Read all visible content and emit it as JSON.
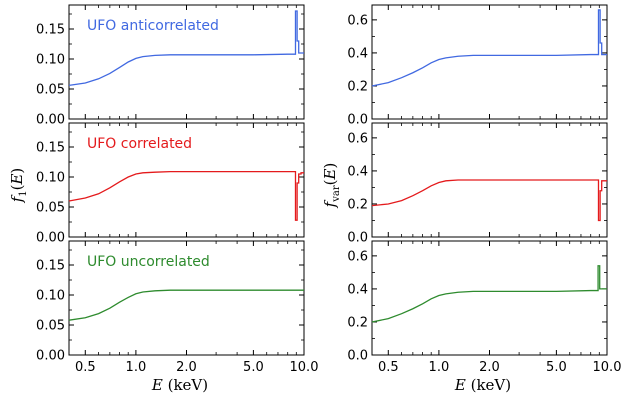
{
  "chart_data": [
    {
      "type": "line",
      "column": "left",
      "ylabel": "f_1(E)",
      "xlabel": "E (keV)",
      "xscale": "log",
      "xlim": [
        0.4,
        10.0
      ],
      "xticks": [
        "0.5",
        "1.0",
        "2.0",
        "5.0",
        "10.0"
      ],
      "ylim": [
        0.0,
        0.19
      ],
      "yticks": [
        "0.00",
        "0.05",
        "0.10",
        "0.15"
      ],
      "panels": [
        {
          "label": "UFO anticorrelated",
          "color": "#4169e1",
          "series": {
            "x": [
              0.4,
              0.5,
              0.6,
              0.7,
              0.8,
              0.9,
              1.0,
              1.1,
              1.3,
              1.6,
              2.0,
              3.0,
              5.0,
              8.0,
              8.9,
              8.9,
              9.1,
              9.1,
              9.3,
              9.3,
              10.0
            ],
            "y": [
              0.056,
              0.06,
              0.067,
              0.076,
              0.086,
              0.095,
              0.101,
              0.104,
              0.106,
              0.107,
              0.107,
              0.107,
              0.107,
              0.108,
              0.108,
              0.18,
              0.18,
              0.13,
              0.13,
              0.11,
              0.11
            ]
          }
        },
        {
          "label": "UFO correlated",
          "color": "#e41a1c",
          "series": {
            "x": [
              0.4,
              0.5,
              0.6,
              0.7,
              0.8,
              0.9,
              1.0,
              1.1,
              1.3,
              1.6,
              2.0,
              3.0,
              5.0,
              8.0,
              8.9,
              8.9,
              9.1,
              9.1,
              9.3,
              9.3,
              9.6,
              9.6,
              10.0
            ],
            "y": [
              0.06,
              0.065,
              0.072,
              0.082,
              0.092,
              0.1,
              0.105,
              0.107,
              0.108,
              0.109,
              0.109,
              0.109,
              0.109,
              0.109,
              0.109,
              0.028,
              0.028,
              0.09,
              0.09,
              0.105,
              0.105,
              0.107,
              0.107
            ]
          }
        },
        {
          "label": "UFO uncorrelated",
          "color": "#2e8b2e",
          "series": {
            "x": [
              0.4,
              0.5,
              0.6,
              0.7,
              0.8,
              0.9,
              1.0,
              1.1,
              1.3,
              1.6,
              2.0,
              3.0,
              5.0,
              8.0,
              10.0
            ],
            "y": [
              0.058,
              0.062,
              0.069,
              0.078,
              0.088,
              0.096,
              0.102,
              0.105,
              0.107,
              0.108,
              0.108,
              0.108,
              0.108,
              0.108,
              0.108
            ]
          }
        }
      ]
    },
    {
      "type": "line",
      "column": "right",
      "ylabel": "f_var(E)",
      "xlabel": "E (keV)",
      "xscale": "log",
      "xlim": [
        0.4,
        10.0
      ],
      "xticks": [
        "0.5",
        "1.0",
        "2.0",
        "5.0",
        "10.0"
      ],
      "ylim": [
        0.0,
        0.69
      ],
      "yticks": [
        "0.0",
        "0.2",
        "0.4",
        "0.6"
      ],
      "panels": [
        {
          "color": "#4169e1",
          "series": {
            "x": [
              0.4,
              0.5,
              0.6,
              0.7,
              0.8,
              0.9,
              1.0,
              1.1,
              1.3,
              1.6,
              2.0,
              3.0,
              5.0,
              8.0,
              8.9,
              8.9,
              9.1,
              9.1,
              9.3,
              9.3,
              10.0
            ],
            "y": [
              0.2,
              0.22,
              0.25,
              0.28,
              0.31,
              0.34,
              0.36,
              0.37,
              0.38,
              0.385,
              0.385,
              0.385,
              0.385,
              0.39,
              0.39,
              0.66,
              0.66,
              0.46,
              0.46,
              0.39,
              0.39
            ]
          }
        },
        {
          "color": "#e41a1c",
          "series": {
            "x": [
              0.4,
              0.5,
              0.6,
              0.7,
              0.8,
              0.9,
              1.0,
              1.1,
              1.3,
              1.6,
              2.0,
              3.0,
              5.0,
              8.0,
              8.9,
              8.9,
              9.1,
              9.1,
              9.3,
              9.3,
              10.0
            ],
            "y": [
              0.19,
              0.2,
              0.22,
              0.25,
              0.28,
              0.31,
              0.33,
              0.34,
              0.345,
              0.345,
              0.345,
              0.345,
              0.345,
              0.345,
              0.345,
              0.1,
              0.1,
              0.28,
              0.28,
              0.34,
              0.34
            ]
          }
        },
        {
          "color": "#2e8b2e",
          "series": {
            "x": [
              0.4,
              0.5,
              0.6,
              0.7,
              0.8,
              0.9,
              1.0,
              1.1,
              1.3,
              1.6,
              2.0,
              3.0,
              5.0,
              8.0,
              8.85,
              8.85,
              9.05,
              9.05,
              10.0
            ],
            "y": [
              0.2,
              0.22,
              0.25,
              0.28,
              0.31,
              0.34,
              0.36,
              0.37,
              0.38,
              0.385,
              0.385,
              0.385,
              0.385,
              0.39,
              0.39,
              0.54,
              0.54,
              0.4,
              0.4
            ]
          }
        }
      ]
    }
  ]
}
